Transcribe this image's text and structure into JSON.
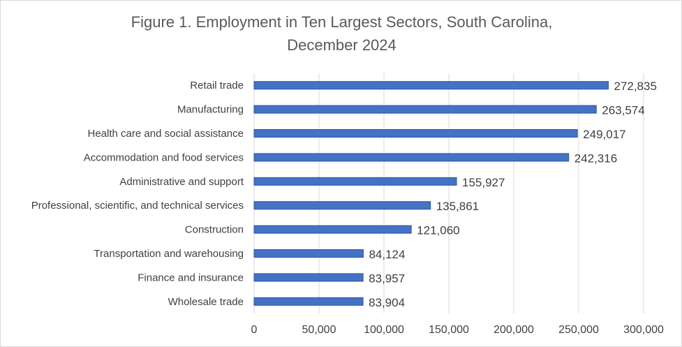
{
  "chart_data": {
    "type": "bar",
    "orientation": "horizontal",
    "title_lines": [
      "Figure 1. Employment in Ten Largest Sectors, South Carolina,",
      "December 2024"
    ],
    "categories": [
      "Retail trade",
      "Manufacturing",
      "Health care and social assistance",
      "Accommodation and food services",
      "Administrative and support",
      "Professional, scientific, and technical services",
      "Construction",
      "Transportation and warehousing",
      "Finance and insurance",
      "Wholesale trade"
    ],
    "values": [
      272835,
      263574,
      249017,
      242316,
      155927,
      135861,
      121060,
      84124,
      83957,
      83904
    ],
    "value_labels": [
      "272,835",
      "263,574",
      "249,017",
      "242,316",
      "155,927",
      "135,861",
      "121,060",
      "84,124",
      "83,957",
      "83,904"
    ],
    "xlim": [
      0,
      300000
    ],
    "x_ticks": [
      0,
      50000,
      100000,
      150000,
      200000,
      250000,
      300000
    ],
    "x_tick_labels": [
      "0",
      "50,000",
      "100,000",
      "150,000",
      "200,000",
      "250,000",
      "300,000"
    ],
    "xlabel": "",
    "ylabel": "",
    "grid": "vertical",
    "legend": "none",
    "bar_color": "#4472C4",
    "bar_edge_color": "#2F5597"
  }
}
